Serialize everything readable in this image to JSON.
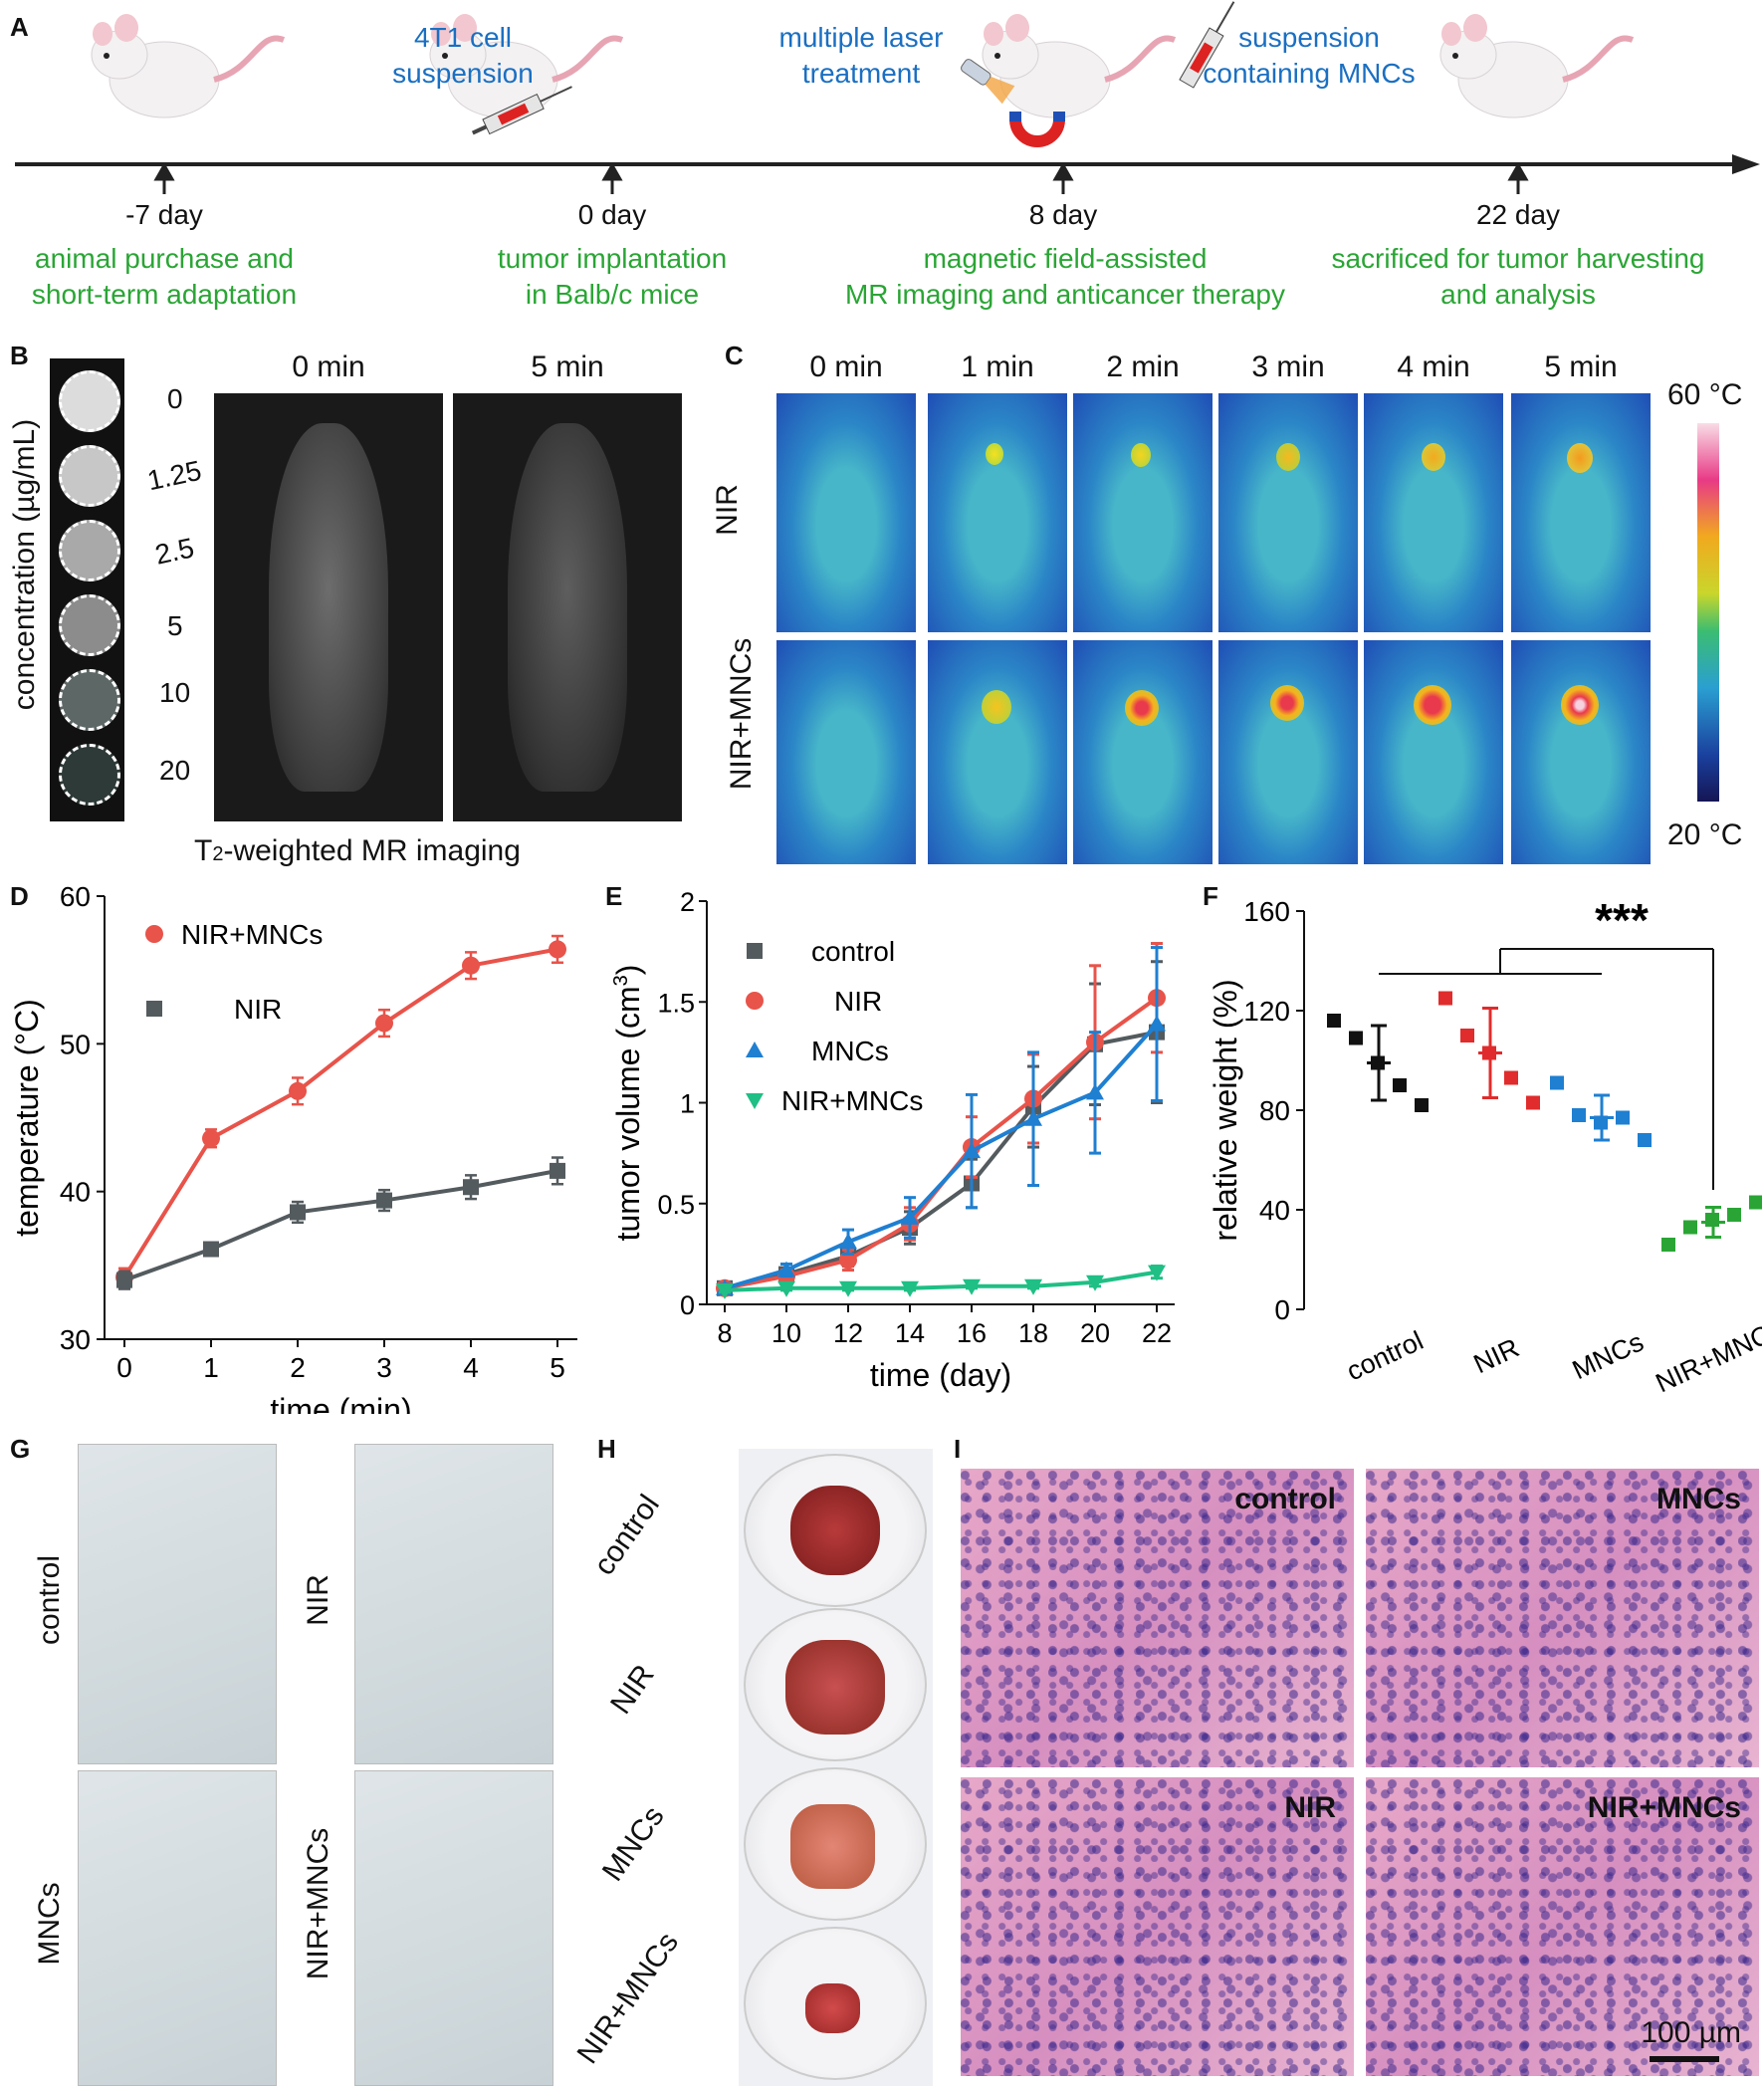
{
  "panelA": {
    "label": "A",
    "timeline": [
      {
        "day": "-7 day",
        "desc1": "animal purchase and",
        "desc2": "short-term adaptation",
        "top": ""
      },
      {
        "day": "0 day",
        "desc1": "tumor implantation",
        "desc2": "in Balb/c mice",
        "top": "4T1 cell",
        "top2": "suspension"
      },
      {
        "day": "8 day",
        "desc1": "magnetic field-assisted",
        "desc2": "MR imaging and anticancer therapy",
        "top": "multiple laser",
        "top2": "treatment"
      },
      {
        "day": "22 day",
        "desc1": "sacrificed for tumor harvesting",
        "desc2": "and analysis",
        "top": "suspension",
        "top2": "containing MNCs"
      }
    ]
  },
  "panelB": {
    "label": "B",
    "ylabel": "concentration (µg/mL)",
    "concentrations": [
      "0",
      "1.25",
      "2.5",
      "5",
      "10",
      "20"
    ],
    "times": [
      "0 min",
      "5 min"
    ],
    "caption_pre": "T",
    "caption_sub": "2",
    "caption_post": "-weighted MR imaging"
  },
  "panelC": {
    "label": "C",
    "times": [
      "0 min",
      "1 min",
      "2 min",
      "3 min",
      "4 min",
      "5 min"
    ],
    "rows": [
      "NIR",
      "NIR+MNCs"
    ],
    "scale_max": "60 °C",
    "scale_min": "20 °C"
  },
  "panelD": {
    "label": "D",
    "chart_data": {
      "type": "line",
      "xlabel": "time (min)",
      "ylabel": "temperature (°C)",
      "x": [
        0,
        1,
        2,
        3,
        4,
        5
      ],
      "xlim": [
        0,
        5
      ],
      "ylim": [
        30,
        60
      ],
      "yticks": [
        30,
        40,
        50,
        60
      ],
      "series": [
        {
          "name": "NIR+MNCs",
          "color": "#e8534a",
          "marker": "circle",
          "values": [
            34.2,
            43.6,
            46.8,
            51.4,
            55.3,
            56.4
          ],
          "err": [
            0.6,
            0.6,
            0.9,
            0.9,
            0.9,
            0.9
          ]
        },
        {
          "name": "NIR",
          "color": "#545b5f",
          "marker": "square",
          "values": [
            34.0,
            36.1,
            38.6,
            39.4,
            40.3,
            41.4
          ],
          "err": [
            0.6,
            0.4,
            0.7,
            0.7,
            0.8,
            0.9
          ]
        }
      ]
    }
  },
  "panelE": {
    "label": "E",
    "chart_data": {
      "type": "line",
      "xlabel": "time (day)",
      "ylabel_pre": "tumor volume (cm",
      "ylabel_sup": "3",
      "ylabel_post": ")",
      "x": [
        8,
        10,
        12,
        14,
        16,
        18,
        20,
        22
      ],
      "ylim": [
        0,
        2
      ],
      "yticks": [
        "0",
        "0.5",
        "1",
        "1.5",
        "2"
      ],
      "series": [
        {
          "name": "control",
          "color": "#545b5f",
          "marker": "square",
          "values": [
            0.08,
            0.15,
            0.24,
            0.38,
            0.6,
            0.98,
            1.29,
            1.35
          ],
          "err": [
            0.02,
            0.03,
            0.05,
            0.08,
            0.12,
            0.2,
            0.3,
            0.35
          ]
        },
        {
          "name": "NIR",
          "color": "#e8534a",
          "marker": "circle",
          "values": [
            0.08,
            0.14,
            0.22,
            0.4,
            0.78,
            1.02,
            1.3,
            1.52
          ],
          "err": [
            0.02,
            0.03,
            0.05,
            0.08,
            0.15,
            0.22,
            0.38,
            0.27
          ]
        },
        {
          "name": "MNCs",
          "color": "#1f7fd1",
          "marker": "triangle",
          "values": [
            0.08,
            0.17,
            0.31,
            0.43,
            0.76,
            0.92,
            1.05,
            1.39
          ],
          "err": [
            0.02,
            0.03,
            0.06,
            0.1,
            0.28,
            0.33,
            0.3,
            0.38
          ]
        },
        {
          "name": "NIR+MNCs",
          "color": "#1fbf85",
          "marker": "triangle-down",
          "values": [
            0.07,
            0.08,
            0.08,
            0.08,
            0.09,
            0.09,
            0.11,
            0.16
          ],
          "err": [
            0.01,
            0.01,
            0.01,
            0.01,
            0.01,
            0.01,
            0.02,
            0.03
          ]
        }
      ]
    }
  },
  "panelF": {
    "label": "F",
    "chart_data": {
      "type": "scatter",
      "ylabel": "relative weight (%)",
      "ylim": [
        0,
        160
      ],
      "yticks": [
        "0",
        "40",
        "80",
        "120",
        "160"
      ],
      "categories": [
        "control",
        "NIR",
        "MNCs",
        "NIR+MNCs"
      ],
      "significance": "***",
      "groups": [
        {
          "name": "control",
          "color": "#111111",
          "points": [
            116,
            109,
            99,
            90,
            82
          ],
          "mean": 99,
          "sd": 15
        },
        {
          "name": "NIR",
          "color": "#e02c2c",
          "points": [
            125,
            110,
            103,
            93,
            83
          ],
          "mean": 103,
          "sd": 18
        },
        {
          "name": "MNCs",
          "color": "#1f7fd1",
          "points": [
            91,
            78,
            75,
            77,
            68
          ],
          "mean": 77,
          "sd": 9
        },
        {
          "name": "NIR+MNCs",
          "color": "#2aa535",
          "points": [
            26,
            33,
            36,
            38,
            43
          ],
          "mean": 35,
          "sd": 6
        }
      ]
    }
  },
  "panelG": {
    "label": "G",
    "groups": [
      "control",
      "NIR",
      "MNCs",
      "NIR+MNCs"
    ]
  },
  "panelH": {
    "label": "H",
    "groups": [
      "control",
      "NIR",
      "MNCs",
      "NIR+MNCs"
    ]
  },
  "panelI": {
    "label": "I",
    "groups": [
      "control",
      "MNCs",
      "NIR",
      "NIR+MNCs"
    ],
    "scale_bar": "100 µm"
  }
}
